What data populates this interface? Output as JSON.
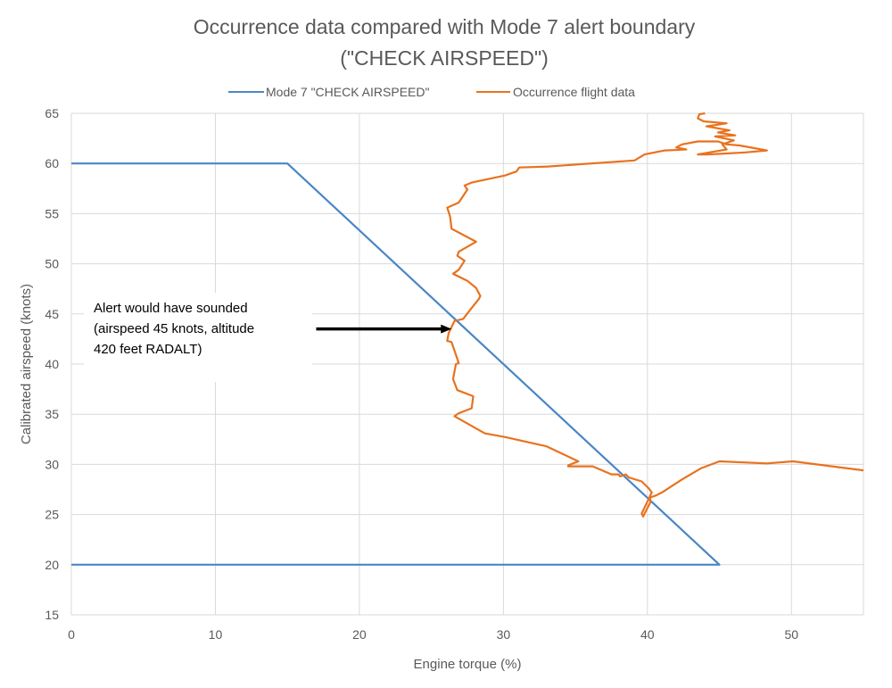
{
  "chart_data": {
    "type": "line",
    "title": [
      "Occurrence data compared with Mode 7 alert boundary",
      "(\"CHECK AIRSPEED\")"
    ],
    "xlabel": "Engine torque (%)",
    "ylabel": "Calibrated airspeed (knots)",
    "xlim": [
      0,
      55
    ],
    "ylim": [
      15,
      65
    ],
    "xticks": [
      0,
      10,
      20,
      30,
      40,
      50
    ],
    "yticks": [
      15,
      20,
      25,
      30,
      35,
      40,
      45,
      50,
      55,
      60,
      65
    ],
    "grid": true,
    "legend_position": "top",
    "series": [
      {
        "name": "Mode 7 \"CHECK AIRSPEED\"",
        "color": "#4a86c5",
        "points": [
          [
            0,
            60
          ],
          [
            15,
            60
          ],
          [
            45,
            20
          ],
          [
            0,
            20
          ]
        ]
      },
      {
        "name": "Occurrence flight data",
        "color": "#e8721f",
        "points": [
          [
            55,
            29.4
          ],
          [
            50.1,
            30.3
          ],
          [
            48.3,
            30.1
          ],
          [
            45,
            30.3
          ],
          [
            43.7,
            29.6
          ],
          [
            42.4,
            28.5
          ],
          [
            41,
            27.2
          ],
          [
            40.6,
            26.9
          ],
          [
            40.2,
            26.7
          ],
          [
            40.2,
            26.2
          ],
          [
            39.7,
            24.8
          ],
          [
            39.6,
            25.1
          ],
          [
            40.3,
            27.2
          ],
          [
            40.1,
            27.6
          ],
          [
            39.6,
            28.3
          ],
          [
            38.7,
            28.7
          ],
          [
            38.5,
            29
          ],
          [
            38.1,
            28.8
          ],
          [
            38,
            29
          ],
          [
            37.5,
            29
          ],
          [
            36.2,
            29.8
          ],
          [
            34.5,
            29.8
          ],
          [
            34.5,
            29.9
          ],
          [
            35.2,
            30.3
          ],
          [
            33,
            31.8
          ],
          [
            30.2,
            32.7
          ],
          [
            28.7,
            33.1
          ],
          [
            26.6,
            34.8
          ],
          [
            26.9,
            35.1
          ],
          [
            27.8,
            35.6
          ],
          [
            27.9,
            36.8
          ],
          [
            26.8,
            37.4
          ],
          [
            26.5,
            38.5
          ],
          [
            26.7,
            40
          ],
          [
            26.9,
            40.1
          ],
          [
            26.4,
            42.2
          ],
          [
            26.1,
            42.3
          ],
          [
            26.2,
            43.1
          ],
          [
            26.6,
            44.3
          ],
          [
            27.2,
            44.5
          ],
          [
            27.8,
            45.6
          ],
          [
            28.3,
            46.5
          ],
          [
            28.4,
            46.8
          ],
          [
            28.1,
            47.6
          ],
          [
            27.5,
            48.3
          ],
          [
            26.5,
            49
          ],
          [
            26.9,
            49.4
          ],
          [
            27.3,
            50.3
          ],
          [
            26.8,
            50.8
          ],
          [
            26.9,
            51.2
          ],
          [
            28.1,
            52.2
          ],
          [
            26.4,
            53.5
          ],
          [
            26.3,
            54.7
          ],
          [
            26.1,
            55.6
          ],
          [
            26.9,
            56.1
          ],
          [
            27.5,
            57.4
          ],
          [
            27.3,
            57.8
          ],
          [
            27.8,
            58.1
          ],
          [
            30.1,
            58.8
          ],
          [
            30.9,
            59.2
          ],
          [
            31.1,
            59.6
          ],
          [
            33.1,
            59.7
          ],
          [
            39.1,
            60.3
          ],
          [
            39.8,
            60.9
          ],
          [
            41.2,
            61.3
          ],
          [
            42.7,
            61.4
          ],
          [
            42,
            61.6
          ],
          [
            42.4,
            61.9
          ],
          [
            43.5,
            62.2
          ],
          [
            44.9,
            62.2
          ],
          [
            45.5,
            61.9
          ],
          [
            46.4,
            61.8
          ],
          [
            48.3,
            61.3
          ],
          [
            46.8,
            61.1
          ],
          [
            45.5,
            61
          ],
          [
            44.1,
            60.9
          ],
          [
            43.5,
            60.9
          ],
          [
            44.7,
            61.2
          ],
          [
            45.5,
            61.4
          ],
          [
            45.2,
            61.9
          ],
          [
            46,
            62.3
          ],
          [
            44.7,
            62.7
          ],
          [
            46.1,
            62.8
          ],
          [
            44.9,
            63.1
          ],
          [
            45.7,
            63.3
          ],
          [
            44.1,
            63.7
          ],
          [
            45.5,
            64
          ],
          [
            43.9,
            64.2
          ],
          [
            43.5,
            64.5
          ],
          [
            43.6,
            64.9
          ],
          [
            44,
            65
          ]
        ]
      }
    ],
    "annotation": {
      "lines": [
        "Alert would have sounded",
        "(airspeed 45 knots, altitude",
        "420 feet RADALT)"
      ],
      "arrow_from": [
        17,
        43.5
      ],
      "arrow_to": [
        26.4,
        43.5
      ]
    }
  }
}
